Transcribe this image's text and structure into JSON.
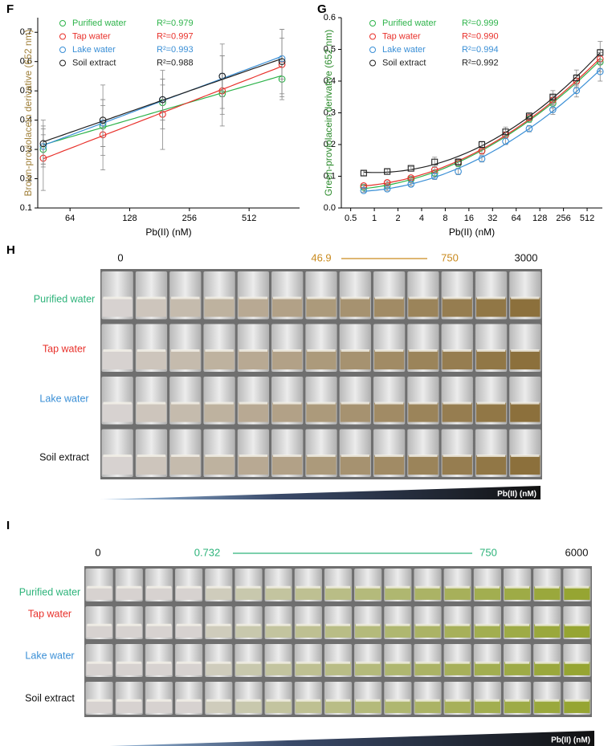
{
  "chart_data": [
    {
      "type": "line",
      "panel_label": "F",
      "x_label": "Pb(II) (nM)",
      "y_label": "Brown-proviolacein derivative (652 nm)",
      "y_label_color": "#a0803a",
      "x_log_base": 2,
      "xlim": [
        44,
        920
      ],
      "xticks": [
        64,
        128,
        256,
        512
      ],
      "ylim": [
        0.1,
        0.75
      ],
      "yticks": [
        0.1,
        0.2,
        0.3,
        0.4,
        0.5,
        0.6,
        0.7
      ],
      "fit_degree": 1,
      "x": [
        46.9,
        93.75,
        187.5,
        375,
        750
      ],
      "series": [
        {
          "name": "Purified water",
          "r2_label": "R²=0.979",
          "color": "#2db34a",
          "marker": "circle",
          "values": [
            0.3,
            0.38,
            0.46,
            0.49,
            0.54
          ],
          "errors": [
            0.05,
            0.07,
            0.06,
            0.07,
            0.06
          ]
        },
        {
          "name": "Tap water",
          "r2_label": "R²=0.997",
          "color": "#e8302a",
          "marker": "circle",
          "values": [
            0.27,
            0.35,
            0.42,
            0.5,
            0.59
          ],
          "errors": [
            0.11,
            0.12,
            0.12,
            0.12,
            0.12
          ]
        },
        {
          "name": "Lake water",
          "r2_label": "R²=0.993",
          "color": "#3a8fd6",
          "marker": "circle",
          "values": [
            0.31,
            0.39,
            0.47,
            0.55,
            0.61
          ],
          "errors": [
            0.06,
            0.08,
            0.07,
            0.07,
            0.07
          ]
        },
        {
          "name": "Soil extract",
          "r2_label": "R²=0.988",
          "color": "#222222",
          "marker": "circle",
          "values": [
            0.32,
            0.4,
            0.47,
            0.55,
            0.6
          ],
          "errors": [
            0.08,
            0.12,
            0.1,
            0.11,
            0.11
          ]
        }
      ]
    },
    {
      "type": "line",
      "panel_label": "G",
      "x_label": "Pb(II) (nM)",
      "y_label": "Green-proviolacein derivative (652 nm)",
      "y_label_color": "#2a8a2a",
      "x_log_base": 2,
      "xlim": [
        0.38,
        800
      ],
      "xticks": [
        0.5,
        1,
        2,
        4,
        8,
        16,
        32,
        64,
        128,
        256,
        512
      ],
      "ylim": [
        0,
        0.6
      ],
      "yticks": [
        {
          "value": 0,
          "label": "0.0"
        },
        0.1,
        0.2,
        0.3,
        0.4,
        0.5,
        0.6
      ],
      "fit_degree": 2,
      "x": [
        0.732,
        1.46,
        2.93,
        5.86,
        11.7,
        23.4,
        46.9,
        93.75,
        187.5,
        375,
        750
      ],
      "series": [
        {
          "name": "Purified water",
          "r2_label": "R²=0.999",
          "color": "#2db34a",
          "marker": "circle",
          "values": [
            0.065,
            0.07,
            0.09,
            0.11,
            0.14,
            0.18,
            0.23,
            0.28,
            0.33,
            0.4,
            0.46
          ],
          "errors": [
            0.005,
            0.005,
            0.005,
            0.01,
            0.01,
            0.01,
            0.01,
            0.01,
            0.015,
            0.02,
            0.03
          ]
        },
        {
          "name": "Tap water",
          "r2_label": "R²=0.990",
          "color": "#e8302a",
          "marker": "circle",
          "values": [
            0.07,
            0.08,
            0.095,
            0.12,
            0.145,
            0.18,
            0.23,
            0.285,
            0.34,
            0.4,
            0.47
          ],
          "errors": [
            0.005,
            0.005,
            0.005,
            0.01,
            0.01,
            0.01,
            0.01,
            0.01,
            0.015,
            0.02,
            0.03
          ]
        },
        {
          "name": "Lake water",
          "r2_label": "R²=0.994",
          "color": "#3a8fd6",
          "marker": "circle",
          "values": [
            0.055,
            0.06,
            0.075,
            0.1,
            0.115,
            0.155,
            0.21,
            0.25,
            0.31,
            0.37,
            0.43
          ],
          "errors": [
            0.005,
            0.005,
            0.005,
            0.01,
            0.01,
            0.01,
            0.01,
            0.01,
            0.015,
            0.02,
            0.03
          ]
        },
        {
          "name": "Soil extract",
          "r2_label": "R²=0.992",
          "color": "#222222",
          "marker": "square",
          "values": [
            0.11,
            0.115,
            0.125,
            0.145,
            0.145,
            0.2,
            0.24,
            0.29,
            0.35,
            0.41,
            0.49
          ],
          "errors": [
            0.008,
            0.008,
            0.005,
            0.015,
            0.01,
            0.01,
            0.015,
            0.01,
            0.02,
            0.025,
            0.035
          ]
        }
      ]
    }
  ],
  "photo_panels": [
    {
      "panel_label": "H",
      "scale_labels": [
        0,
        46.9,
        750,
        3000
      ],
      "scale_colors": [
        "#111111",
        "#c98a1e",
        "#c98a1e",
        "#111111"
      ],
      "axis_label": "Pb(II) (nM)",
      "rows": [
        {
          "name": "Purified water",
          "color": "#2db37a"
        },
        {
          "name": "Tap water",
          "color": "#e8302a"
        },
        {
          "name": "Lake water",
          "color": "#3a8fd6"
        },
        {
          "name": "Soil extract",
          "color": "#111111"
        }
      ]
    },
    {
      "panel_label": "I",
      "scale_labels": [
        0,
        0.732,
        750,
        6000
      ],
      "scale_colors": [
        "#111111",
        "#2db37a",
        "#2db37a",
        "#111111"
      ],
      "axis_label": "Pb(II) (nM)",
      "rows": [
        {
          "name": "Purified water",
          "color": "#2db37a"
        },
        {
          "name": "Tap water",
          "color": "#e8302a"
        },
        {
          "name": "Lake water",
          "color": "#3a8fd6"
        },
        {
          "name": "Soil extract",
          "color": "#111111"
        }
      ]
    }
  ]
}
